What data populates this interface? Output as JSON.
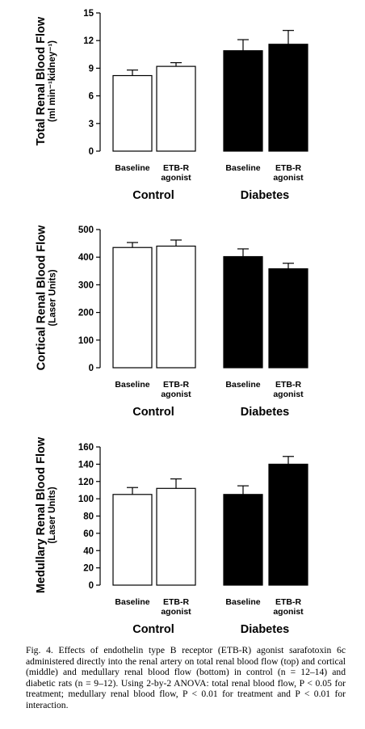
{
  "chart_data": [
    {
      "type": "bar",
      "ylabel_main": "Total Renal Blood Flow",
      "ylabel_unit": "(ml min⁻¹kidney⁻¹)",
      "ylim": [
        0,
        15
      ],
      "yticks": [
        0,
        3,
        6,
        9,
        12,
        15
      ],
      "groups": [
        "Control",
        "Diabetes"
      ],
      "categories": [
        [
          "Baseline"
        ],
        [
          "ETB-R",
          "agonist"
        ],
        [
          "Baseline"
        ],
        [
          "ETB-R",
          "agonist"
        ]
      ],
      "values": [
        8.2,
        9.2,
        10.9,
        11.6
      ],
      "errors": [
        0.6,
        0.4,
        1.2,
        1.5
      ],
      "fills": [
        "#ffffff",
        "#ffffff",
        "#000000",
        "#000000"
      ]
    },
    {
      "type": "bar",
      "ylabel_main": "Cortical Renal Blood Flow",
      "ylabel_unit": "(Laser Units)",
      "ylim": [
        0,
        500
      ],
      "yticks": [
        0,
        100,
        200,
        300,
        400,
        500
      ],
      "groups": [
        "Control",
        "Diabetes"
      ],
      "categories": [
        [
          "Baseline"
        ],
        [
          "ETB-R",
          "agonist"
        ],
        [
          "Baseline"
        ],
        [
          "ETB-R",
          "agonist"
        ]
      ],
      "values": [
        435,
        440,
        402,
        358
      ],
      "errors": [
        18,
        22,
        28,
        20
      ],
      "fills": [
        "#ffffff",
        "#ffffff",
        "#000000",
        "#000000"
      ]
    },
    {
      "type": "bar",
      "ylabel_main": "Medullary Renal Blood Flow",
      "ylabel_unit": "(Laser Units)",
      "ylim": [
        0,
        160
      ],
      "yticks": [
        0,
        20,
        40,
        60,
        80,
        100,
        120,
        140,
        160
      ],
      "groups": [
        "Control",
        "Diabetes"
      ],
      "categories": [
        [
          "Baseline"
        ],
        [
          "ETB-R",
          "agonist"
        ],
        [
          "Baseline"
        ],
        [
          "ETB-R",
          "agonist"
        ]
      ],
      "values": [
        105,
        112,
        105,
        140
      ],
      "errors": [
        8,
        11,
        10,
        9
      ],
      "fills": [
        "#ffffff",
        "#ffffff",
        "#000000",
        "#000000"
      ]
    }
  ],
  "caption": "Fig. 4. Effects of endothelin type B receptor (ETB-R) agonist sarafotoxin 6c administered directly into the renal artery on total renal blood flow (top) and cortical (middle) and medullary renal blood flow (bottom) in control (n = 12–14) and diabetic rats (n = 9–12). Using 2-by-2 ANOVA: total renal blood flow, P < 0.05 for treatment; medullary renal blood flow, P < 0.01 for treatment and P < 0.01 for interaction."
}
